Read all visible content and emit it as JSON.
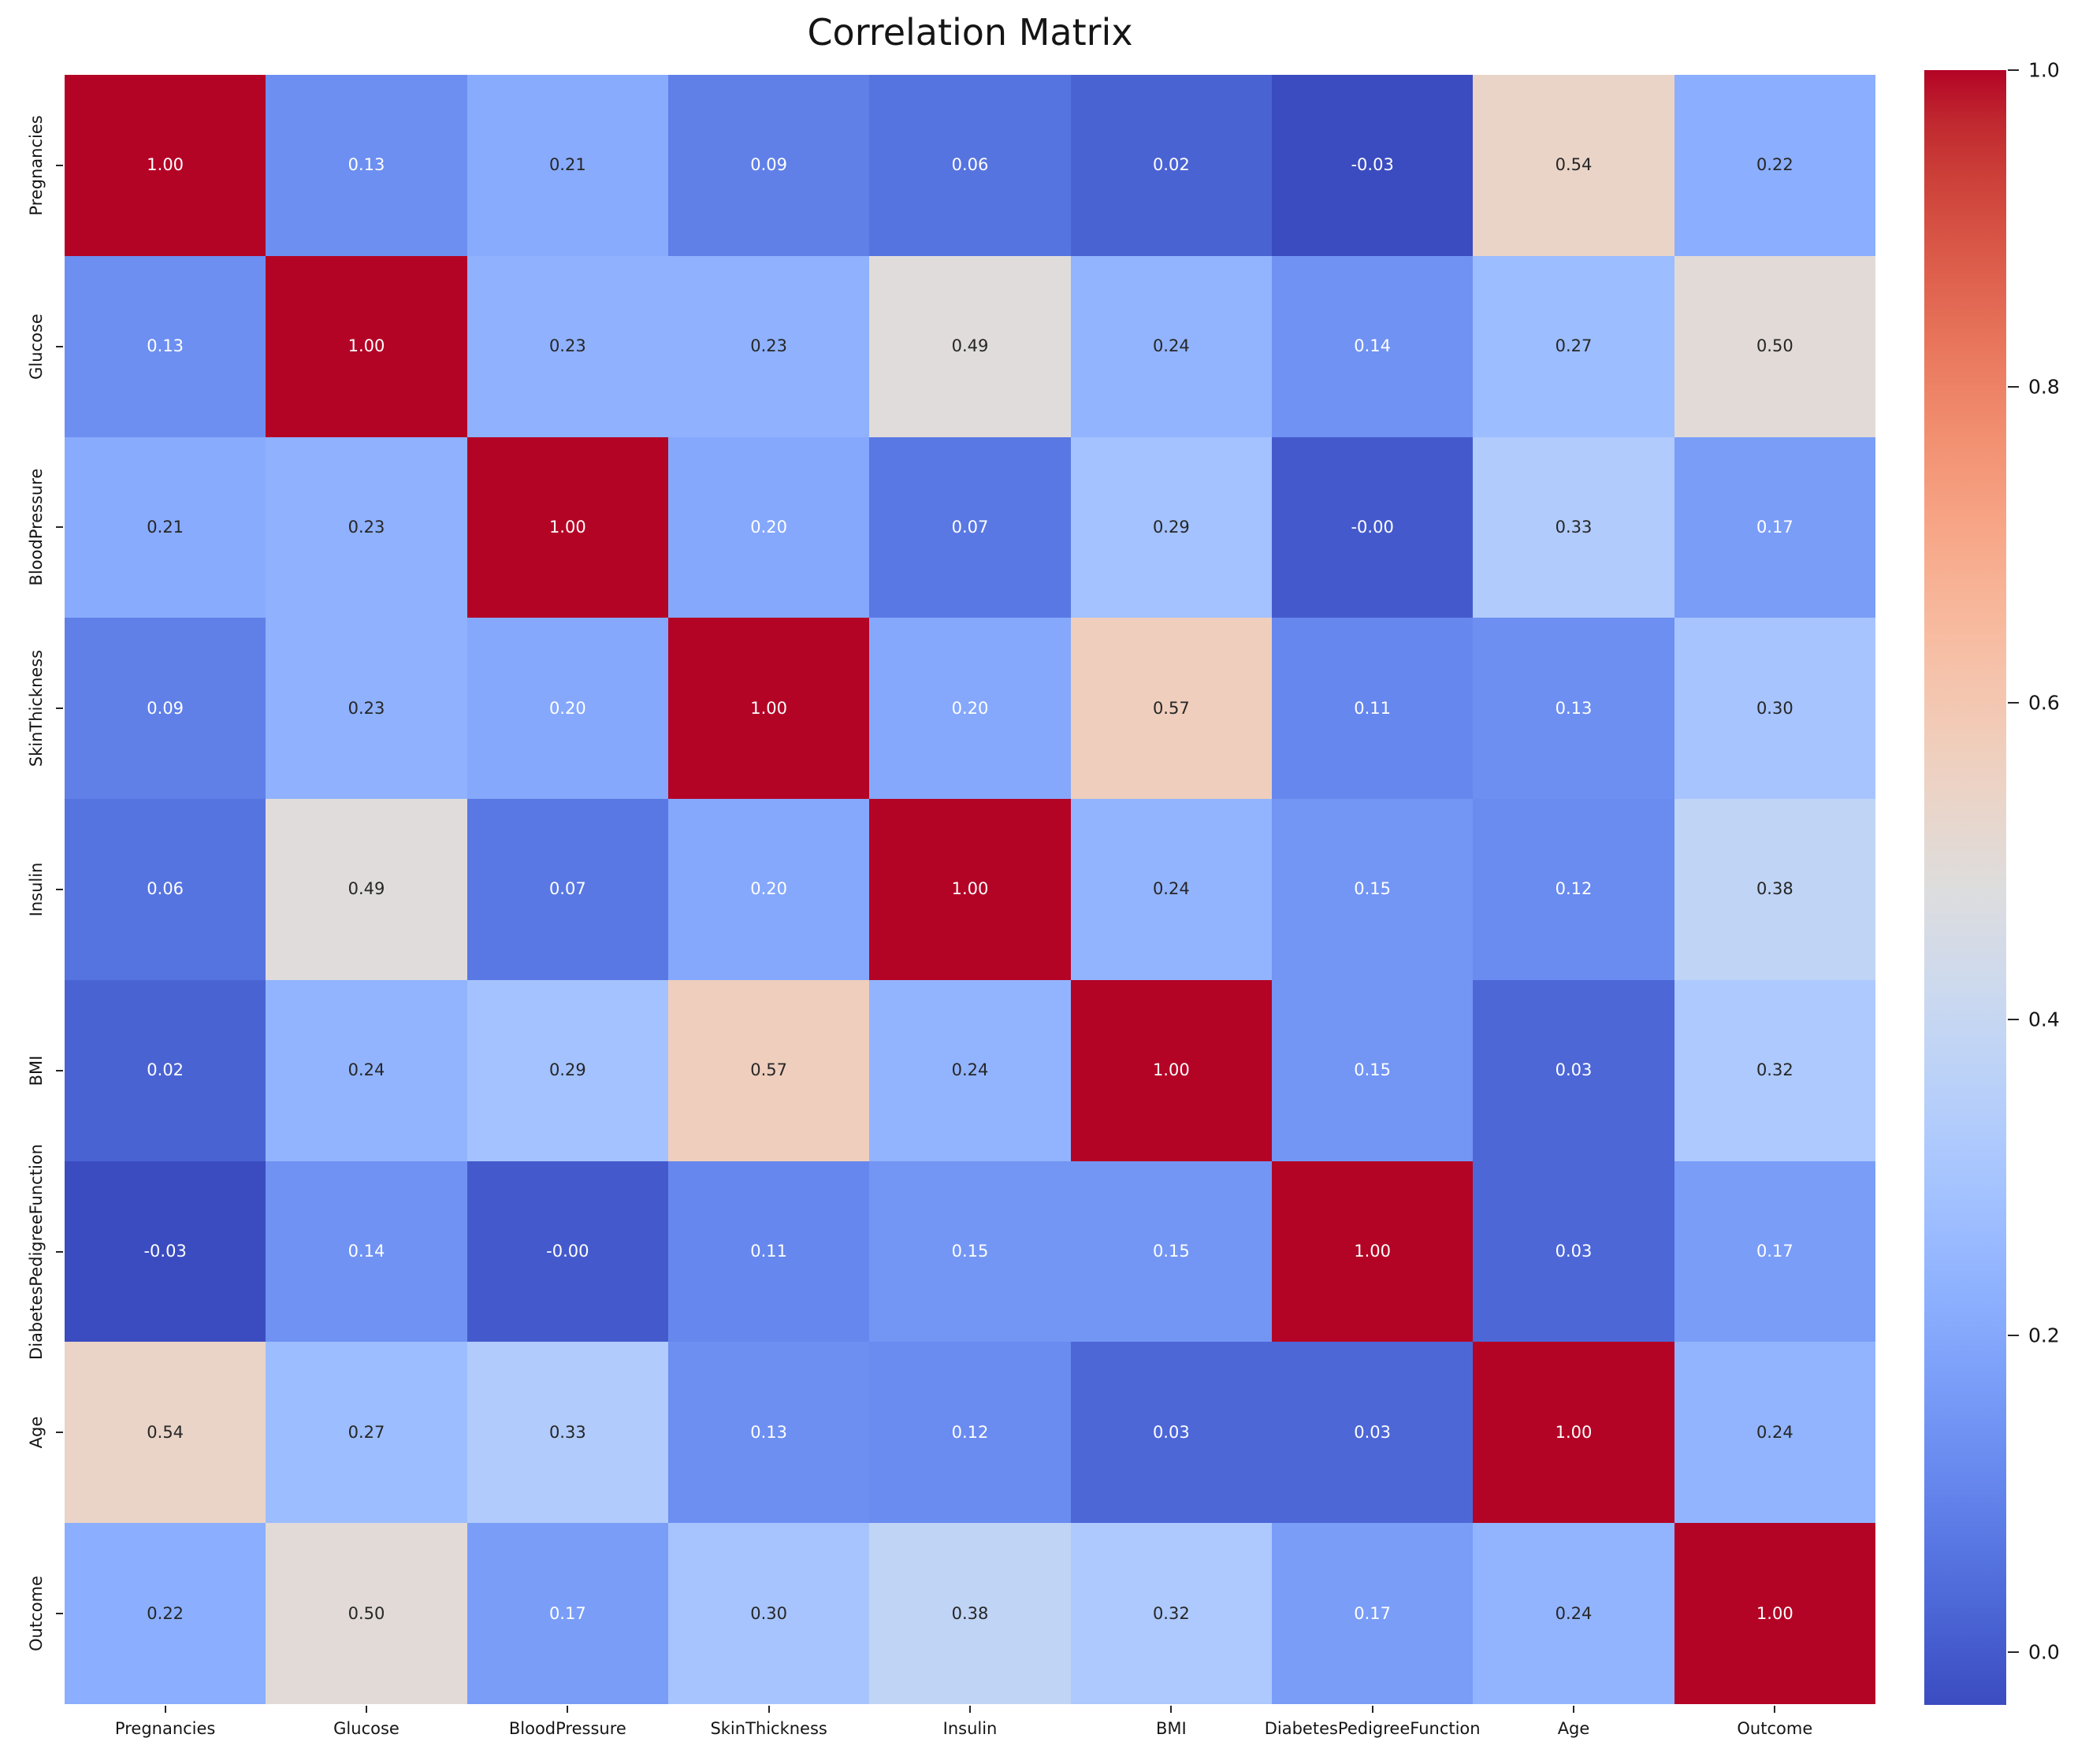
{
  "chart_data": {
    "type": "heatmap",
    "title": "Correlation Matrix",
    "labels": [
      "Pregnancies",
      "Glucose",
      "BloodPressure",
      "SkinThickness",
      "Insulin",
      "BMI",
      "DiabetesPedigreeFunction",
      "Age",
      "Outcome"
    ],
    "matrix": [
      [
        1.0,
        0.13,
        0.21,
        0.09,
        0.06,
        0.02,
        -0.033,
        0.54,
        0.22
      ],
      [
        0.13,
        1.0,
        0.23,
        0.23,
        0.49,
        0.24,
        0.14,
        0.27,
        0.5
      ],
      [
        0.21,
        0.23,
        1.0,
        0.2,
        0.07,
        0.29,
        -0.002,
        0.33,
        0.17
      ],
      [
        0.09,
        0.23,
        0.2,
        1.0,
        0.2,
        0.57,
        0.11,
        0.13,
        0.3
      ],
      [
        0.06,
        0.49,
        0.07,
        0.2,
        1.0,
        0.24,
        0.15,
        0.12,
        0.38
      ],
      [
        0.02,
        0.24,
        0.29,
        0.57,
        0.24,
        1.0,
        0.15,
        0.03,
        0.32
      ],
      [
        -0.033,
        0.14,
        -0.002,
        0.11,
        0.15,
        0.15,
        1.0,
        0.03,
        0.17
      ],
      [
        0.54,
        0.27,
        0.33,
        0.13,
        0.12,
        0.03,
        0.03,
        1.0,
        0.24
      ],
      [
        0.22,
        0.5,
        0.17,
        0.3,
        0.38,
        0.32,
        0.17,
        0.24,
        1.0
      ]
    ],
    "value_decimals": 2,
    "vmin": -0.0334,
    "vmax": 1.0,
    "legend_position": "right-colorbar",
    "grid": false,
    "colorbar_ticks": [
      1.0,
      0.8,
      0.6,
      0.4,
      0.2,
      0.0
    ],
    "colormap_name": "coolwarm",
    "colormap_rgb": [
      [
        59,
        76,
        192
      ],
      [
        68,
        90,
        204
      ],
      [
        77,
        104,
        215
      ],
      [
        87,
        117,
        225
      ],
      [
        98,
        130,
        234
      ],
      [
        108,
        142,
        241
      ],
      [
        119,
        154,
        247
      ],
      [
        130,
        165,
        251
      ],
      [
        141,
        176,
        254
      ],
      [
        152,
        185,
        255
      ],
      [
        163,
        194,
        255
      ],
      [
        174,
        201,
        253
      ],
      [
        184,
        208,
        249
      ],
      [
        194,
        213,
        244
      ],
      [
        204,
        217,
        238
      ],
      [
        213,
        219,
        230
      ],
      [
        221,
        221,
        221
      ],
      [
        229,
        216,
        209
      ],
      [
        236,
        211,
        197
      ],
      [
        241,
        204,
        185
      ],
      [
        245,
        196,
        173
      ],
      [
        247,
        187,
        160
      ],
      [
        247,
        177,
        148
      ],
      [
        247,
        166,
        135
      ],
      [
        244,
        154,
        123
      ],
      [
        241,
        141,
        111
      ],
      [
        236,
        127,
        99
      ],
      [
        229,
        112,
        88
      ],
      [
        222,
        96,
        77
      ],
      [
        213,
        80,
        66
      ],
      [
        203,
        62,
        56
      ],
      [
        192,
        40,
        47
      ],
      [
        180,
        4,
        38
      ]
    ],
    "annotation_dark_color": "#262626",
    "annotation_light_color": "#ffffff",
    "luminance_threshold": 0.408,
    "max_color_hex": "#b40426",
    "min_color_hex": "#3b4cc0",
    "mid_color_hex": "#dddddd"
  }
}
